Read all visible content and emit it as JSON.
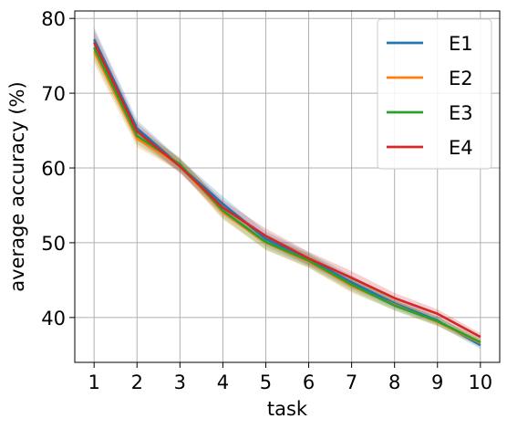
{
  "chart_data": {
    "type": "line",
    "title": "",
    "xlabel": "task",
    "ylabel": "average accuracy (%)",
    "x": [
      1,
      2,
      3,
      4,
      5,
      6,
      7,
      8,
      9,
      10
    ],
    "xticks": [
      1,
      2,
      3,
      4,
      5,
      6,
      7,
      8,
      9,
      10
    ],
    "yticks": [
      40,
      50,
      60,
      70,
      80
    ],
    "xlim": [
      0.55,
      10.45
    ],
    "ylim": [
      34,
      81
    ],
    "grid": true,
    "legend": "top-right",
    "series": [
      {
        "name": "E1",
        "color": "#1f77b4",
        "values": [
          77.2,
          65.3,
          60.3,
          55.2,
          50.5,
          47.8,
          44.7,
          41.9,
          39.6,
          36.3
        ]
      },
      {
        "name": "E2",
        "color": "#ff7f0e",
        "values": [
          75.6,
          63.9,
          60.4,
          54.1,
          50.0,
          47.5,
          44.2,
          41.7,
          39.4,
          36.6
        ]
      },
      {
        "name": "E3",
        "color": "#2ca02c",
        "values": [
          76.1,
          64.3,
          60.5,
          54.3,
          50.1,
          47.6,
          44.4,
          41.6,
          39.5,
          36.7
        ]
      },
      {
        "name": "E4",
        "color": "#d62728",
        "values": [
          76.8,
          64.9,
          60.2,
          54.7,
          50.9,
          47.9,
          45.3,
          42.6,
          40.5,
          37.4
        ]
      }
    ],
    "band_halfwidth": [
      1.6,
      1.1,
      0.9,
      1.0,
      1.0,
      0.9,
      0.9,
      0.7,
      0.6,
      0.5
    ]
  }
}
